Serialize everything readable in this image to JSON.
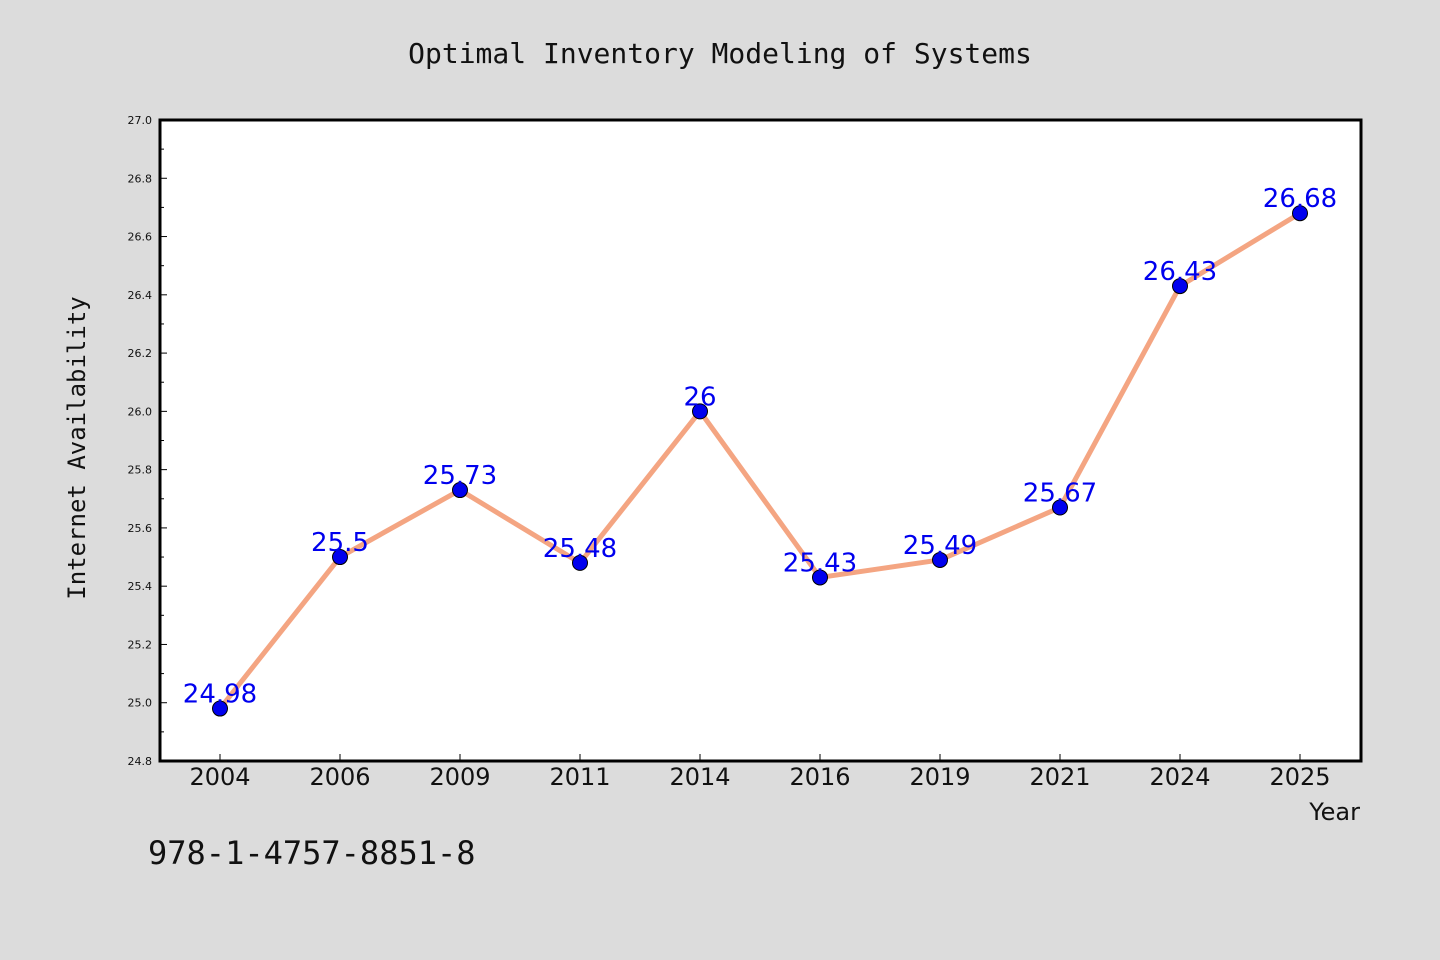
{
  "chart_data": {
    "type": "line",
    "title": "Optimal Inventory Modeling of Systems",
    "xlabel": "Year",
    "ylabel": "Internet Availability",
    "categories": [
      "2004",
      "2006",
      "2009",
      "2011",
      "2014",
      "2016",
      "2019",
      "2021",
      "2024",
      "2025"
    ],
    "series": [
      {
        "values": [
          24.98,
          25.5,
          25.73,
          25.48,
          26,
          25.43,
          25.49,
          25.67,
          26.43,
          26.68
        ],
        "data_labels": [
          "24.98",
          "25.5",
          "25.73",
          "25.48",
          "26",
          "25.43",
          "25.49",
          "25.67",
          "26.43",
          "26.68"
        ]
      }
    ],
    "ylim": [
      24.8,
      27.0
    ],
    "yticks": [
      "24.8",
      "25.0",
      "25.2",
      "25.4",
      "25.6",
      "25.8",
      "26.0",
      "26.2",
      "26.4",
      "26.6",
      "26.8",
      "27.0"
    ],
    "grid": false,
    "colors": {
      "line": "#f4a582",
      "marker": "#0000ee",
      "data_label": "#0000ee",
      "background": "#dcdcdc",
      "plot_background": "#ffffff"
    }
  },
  "footer_text": "978-1-4757-8851-8"
}
